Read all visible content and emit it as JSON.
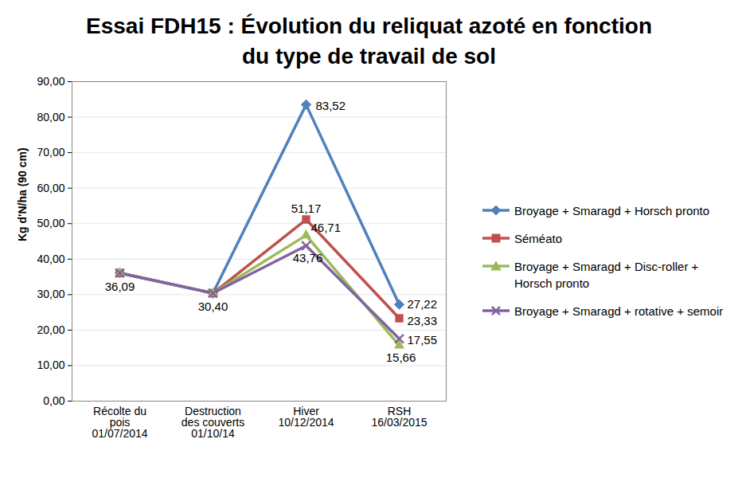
{
  "chart_data": {
    "type": "line",
    "title": "Essai FDH15 : Évolution du reliquat azoté en fonction du type de travail de sol",
    "y_label": "Kg d'N/ha (90 cm)",
    "categories": [
      "Récolte du\npois\n01/07/2014",
      "Destruction\ndes couverts\n01/10/14",
      "Hiver\n10/12/2014",
      "RSH\n16/03/2015"
    ],
    "ylim": [
      0,
      90
    ],
    "yticks": [
      {
        "value": 0,
        "label": "0,00"
      },
      {
        "value": 10,
        "label": "10,00"
      },
      {
        "value": 20,
        "label": "20,00"
      },
      {
        "value": 30,
        "label": "30,00"
      },
      {
        "value": 40,
        "label": "40,00"
      },
      {
        "value": 50,
        "label": "50,00"
      },
      {
        "value": 60,
        "label": "60,00"
      },
      {
        "value": 70,
        "label": "70,00"
      },
      {
        "value": 80,
        "label": "80,00"
      },
      {
        "value": 90,
        "label": "90,00"
      }
    ],
    "grid": true,
    "data_labels": true,
    "legend": "right",
    "series": [
      {
        "name": "Broyage + Smaragd + Horsch pronto",
        "color": "#4f81bd",
        "marker": "diamond",
        "values": [
          36.09,
          30.4,
          83.52,
          27.22
        ],
        "value_labels": [
          null,
          null,
          "83,52",
          "27,22"
        ]
      },
      {
        "name": "Séméato",
        "color": "#c0504d",
        "marker": "square",
        "values": [
          36.09,
          30.4,
          51.17,
          23.33
        ],
        "value_labels": [
          null,
          null,
          "51,17",
          "23,33"
        ]
      },
      {
        "name": "Broyage + Smaragd + Disc-roller + Horsch pronto",
        "color": "#9bbb59",
        "marker": "triangle",
        "values": [
          36.09,
          30.4,
          46.71,
          15.66
        ],
        "value_labels": [
          null,
          null,
          "46,71",
          "15,66"
        ]
      },
      {
        "name": "Broyage + Smaragd + rotative + semoir",
        "color": "#8064a2",
        "marker": "x",
        "values": [
          36.09,
          30.4,
          43.76,
          17.55
        ],
        "value_labels": [
          "36,09",
          "30,40",
          "43,76",
          "17,55"
        ]
      }
    ]
  }
}
